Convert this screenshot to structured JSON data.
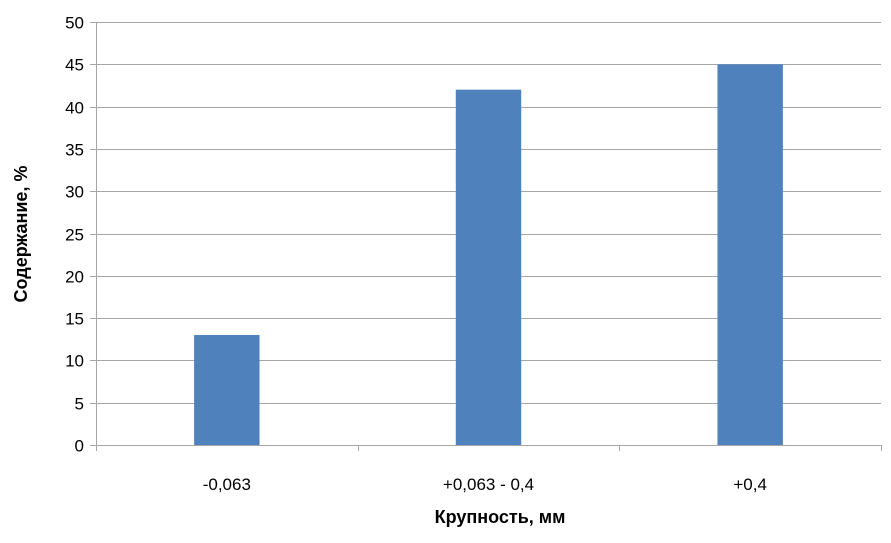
{
  "chart_data": {
    "type": "bar",
    "categories": [
      "-0,063",
      "+0,063 - 0,4",
      "+0,4"
    ],
    "values": [
      13,
      42,
      45
    ],
    "xlabel": "Крупность, мм",
    "ylabel": "Содержание, %",
    "ylim": [
      0,
      50
    ],
    "yticks": [
      "0",
      "5",
      "10",
      "15",
      "20",
      "25",
      "30",
      "35",
      "40",
      "45",
      "50"
    ],
    "grid": true,
    "legend": "none",
    "bar_color": "#4F81BD",
    "grid_color": "#A6A6A6"
  }
}
